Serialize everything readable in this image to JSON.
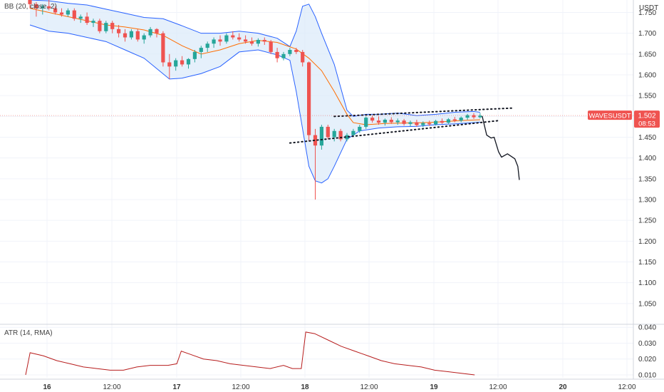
{
  "chart_data": {
    "type": "candlestick",
    "currency_label": "USDT",
    "price_axis": {
      "range": [
        1.0,
        1.78
      ],
      "ticks": [
        "1.750",
        "1.700",
        "1.650",
        "1.600",
        "1.550",
        "1.500",
        "1.450",
        "1.400",
        "1.350",
        "1.300",
        "1.250",
        "1.200",
        "1.150",
        "1.100",
        "1.050"
      ]
    },
    "atr_axis": {
      "range": [
        0.006,
        0.042
      ],
      "ticks": [
        "0.040",
        "0.030",
        "0.020",
        "0.010"
      ]
    },
    "x_axis": {
      "labels": [
        {
          "text": "16",
          "major": true
        },
        {
          "text": "12:00",
          "major": false
        },
        {
          "text": "17",
          "major": true
        },
        {
          "text": "12:00",
          "major": false
        },
        {
          "text": "18",
          "major": true
        },
        {
          "text": "12:00",
          "major": false
        },
        {
          "text": "19",
          "major": true
        },
        {
          "text": "12:00",
          "major": false
        },
        {
          "text": "20",
          "major": true
        },
        {
          "text": "12:00",
          "major": false
        }
      ]
    },
    "bollinger_label": "BB (20, close, 2)",
    "atr_label": "ATR (14, RMA)",
    "symbol_tag": "WAVESUSDT",
    "last_price": "1.502",
    "countdown": "08:53",
    "colors": {
      "up": "#26a69a",
      "down": "#ef5350",
      "bb_band": "#2962ff",
      "bb_fill": "#dcebfa",
      "bb_basis": "#ff6d00",
      "atr_line": "#b71c1c",
      "price_tag": "#ef5350"
    },
    "candles": [
      [
        1.78,
        1.79,
        1.76,
        1.77
      ],
      [
        1.77,
        1.775,
        1.74,
        1.76
      ],
      [
        1.76,
        1.77,
        1.745,
        1.765
      ],
      [
        1.765,
        1.78,
        1.755,
        1.76
      ],
      [
        1.76,
        1.765,
        1.745,
        1.75
      ],
      [
        1.75,
        1.76,
        1.74,
        1.745
      ],
      [
        1.745,
        1.76,
        1.74,
        1.755
      ],
      [
        1.755,
        1.76,
        1.73,
        1.735
      ],
      [
        1.735,
        1.745,
        1.725,
        1.74
      ],
      [
        1.74,
        1.75,
        1.72,
        1.725
      ],
      [
        1.725,
        1.735,
        1.715,
        1.73
      ],
      [
        1.73,
        1.735,
        1.7,
        1.705
      ],
      [
        1.705,
        1.73,
        1.7,
        1.725
      ],
      [
        1.725,
        1.73,
        1.7,
        1.71
      ],
      [
        1.71,
        1.72,
        1.69,
        1.7
      ],
      [
        1.7,
        1.71,
        1.68,
        1.69
      ],
      [
        1.69,
        1.71,
        1.685,
        1.705
      ],
      [
        1.705,
        1.71,
        1.68,
        1.685
      ],
      [
        1.685,
        1.7,
        1.675,
        1.695
      ],
      [
        1.695,
        1.715,
        1.69,
        1.71
      ],
      [
        1.71,
        1.712,
        1.69,
        1.7
      ],
      [
        1.7,
        1.705,
        1.62,
        1.63
      ],
      [
        1.63,
        1.65,
        1.59,
        1.62
      ],
      [
        1.62,
        1.64,
        1.61,
        1.635
      ],
      [
        1.635,
        1.645,
        1.62,
        1.625
      ],
      [
        1.625,
        1.64,
        1.615,
        1.638
      ],
      [
        1.638,
        1.66,
        1.63,
        1.655
      ],
      [
        1.655,
        1.67,
        1.64,
        1.665
      ],
      [
        1.665,
        1.68,
        1.655,
        1.675
      ],
      [
        1.675,
        1.69,
        1.665,
        1.685
      ],
      [
        1.685,
        1.695,
        1.67,
        1.68
      ],
      [
        1.68,
        1.7,
        1.675,
        1.695
      ],
      [
        1.695,
        1.705,
        1.685,
        1.69
      ],
      [
        1.69,
        1.7,
        1.68,
        1.685
      ],
      [
        1.685,
        1.695,
        1.675,
        1.68
      ],
      [
        1.68,
        1.69,
        1.67,
        1.675
      ],
      [
        1.675,
        1.688,
        1.668,
        1.684
      ],
      [
        1.684,
        1.69,
        1.672,
        1.68
      ],
      [
        1.68,
        1.684,
        1.65,
        1.655
      ],
      [
        1.655,
        1.665,
        1.63,
        1.64
      ],
      [
        1.64,
        1.655,
        1.635,
        1.65
      ],
      [
        1.65,
        1.665,
        1.645,
        1.66
      ],
      [
        1.66,
        1.665,
        1.65,
        1.655
      ],
      [
        1.655,
        1.66,
        1.62,
        1.63
      ],
      [
        1.63,
        1.632,
        1.44,
        1.455
      ],
      [
        1.455,
        1.47,
        1.3,
        1.43
      ],
      [
        1.43,
        1.48,
        1.42,
        1.475
      ],
      [
        1.475,
        1.48,
        1.445,
        1.45
      ],
      [
        1.45,
        1.47,
        1.44,
        1.465
      ],
      [
        1.465,
        1.47,
        1.44,
        1.445
      ],
      [
        1.445,
        1.46,
        1.44,
        1.455
      ],
      [
        1.455,
        1.47,
        1.45,
        1.465
      ],
      [
        1.465,
        1.48,
        1.46,
        1.475
      ],
      [
        1.475,
        1.5,
        1.47,
        1.497
      ],
      [
        1.497,
        1.502,
        1.485,
        1.49
      ],
      [
        1.49,
        1.5,
        1.48,
        1.485
      ],
      [
        1.485,
        1.495,
        1.478,
        1.492
      ],
      [
        1.492,
        1.498,
        1.482,
        1.486
      ],
      [
        1.486,
        1.495,
        1.48,
        1.49
      ],
      [
        1.49,
        1.494,
        1.478,
        1.482
      ],
      [
        1.482,
        1.49,
        1.476,
        1.486
      ],
      [
        1.486,
        1.492,
        1.475,
        1.479
      ],
      [
        1.479,
        1.488,
        1.474,
        1.484
      ],
      [
        1.484,
        1.49,
        1.477,
        1.481
      ],
      [
        1.481,
        1.492,
        1.478,
        1.489
      ],
      [
        1.489,
        1.495,
        1.482,
        1.485
      ],
      [
        1.485,
        1.496,
        1.482,
        1.493
      ],
      [
        1.493,
        1.499,
        1.486,
        1.49
      ],
      [
        1.49,
        1.5,
        1.486,
        1.497
      ],
      [
        1.497,
        1.506,
        1.492,
        1.503
      ],
      [
        1.503,
        1.508,
        1.494,
        1.498
      ],
      [
        1.498,
        1.508,
        1.495,
        1.502
      ]
    ],
    "bb_upper": [
      [
        0,
        1.78
      ],
      [
        3,
        1.778
      ],
      [
        6,
        1.772
      ],
      [
        9,
        1.768
      ],
      [
        12,
        1.758
      ],
      [
        15,
        1.748
      ],
      [
        18,
        1.738
      ],
      [
        21,
        1.735
      ],
      [
        24,
        1.718
      ],
      [
        27,
        1.7
      ],
      [
        30,
        1.7
      ],
      [
        33,
        1.705
      ],
      [
        36,
        1.7
      ],
      [
        39,
        1.688
      ],
      [
        41,
        1.668
      ],
      [
        42,
        1.705
      ],
      [
        43,
        1.765
      ],
      [
        44,
        1.77
      ],
      [
        45,
        1.74
      ],
      [
        46,
        1.7
      ],
      [
        48,
        1.625
      ],
      [
        50,
        1.515
      ],
      [
        51,
        1.5
      ],
      [
        53,
        1.505
      ],
      [
        55,
        1.505
      ],
      [
        58,
        1.508
      ],
      [
        61,
        1.502
      ],
      [
        64,
        1.505
      ],
      [
        67,
        1.51
      ],
      [
        70,
        1.512
      ],
      [
        71,
        1.51
      ]
    ],
    "bb_lower": [
      [
        0,
        1.72
      ],
      [
        3,
        1.705
      ],
      [
        6,
        1.7
      ],
      [
        9,
        1.69
      ],
      [
        12,
        1.68
      ],
      [
        15,
        1.66
      ],
      [
        18,
        1.64
      ],
      [
        20,
        1.615
      ],
      [
        22,
        1.59
      ],
      [
        24,
        1.592
      ],
      [
        27,
        1.603
      ],
      [
        30,
        1.62
      ],
      [
        33,
        1.655
      ],
      [
        36,
        1.66
      ],
      [
        39,
        1.648
      ],
      [
        41,
        1.635
      ],
      [
        42,
        1.56
      ],
      [
        43,
        1.47
      ],
      [
        44,
        1.38
      ],
      [
        45,
        1.345
      ],
      [
        46,
        1.34
      ],
      [
        47,
        1.35
      ],
      [
        48,
        1.38
      ],
      [
        50,
        1.445
      ],
      [
        52,
        1.465
      ],
      [
        55,
        1.472
      ],
      [
        58,
        1.475
      ],
      [
        61,
        1.476
      ],
      [
        64,
        1.48
      ],
      [
        67,
        1.482
      ],
      [
        70,
        1.485
      ],
      [
        71,
        1.486
      ]
    ],
    "bb_basis": [
      [
        0,
        1.76
      ],
      [
        3,
        1.75
      ],
      [
        6,
        1.74
      ],
      [
        9,
        1.73
      ],
      [
        12,
        1.72
      ],
      [
        15,
        1.715
      ],
      [
        18,
        1.708
      ],
      [
        21,
        1.695
      ],
      [
        24,
        1.67
      ],
      [
        27,
        1.65
      ],
      [
        30,
        1.66
      ],
      [
        33,
        1.675
      ],
      [
        36,
        1.683
      ],
      [
        39,
        1.678
      ],
      [
        42,
        1.662
      ],
      [
        44,
        1.64
      ],
      [
        46,
        1.61
      ],
      [
        48,
        1.56
      ],
      [
        50,
        1.505
      ],
      [
        51,
        1.485
      ],
      [
        53,
        1.48
      ],
      [
        56,
        1.483
      ],
      [
        59,
        1.484
      ],
      [
        62,
        1.485
      ],
      [
        65,
        1.487
      ],
      [
        68,
        1.49
      ],
      [
        71,
        1.492
      ]
    ],
    "projection_path": [
      [
        1.5,
        0
      ],
      [
        1.455,
        0.6
      ],
      [
        1.448,
        1.2
      ],
      [
        1.45,
        1.6
      ],
      [
        1.415,
        2.2
      ],
      [
        1.402,
        2.6
      ],
      [
        1.41,
        3.4
      ],
      [
        1.398,
        4.4
      ],
      [
        1.38,
        4.8
      ],
      [
        1.348,
        5.0
      ]
    ],
    "trend_upper": [
      [
        48,
        1.5
      ],
      [
        76,
        1.52
      ]
    ],
    "trend_lower": [
      [
        41,
        1.436
      ],
      [
        74,
        1.49
      ]
    ],
    "atr": [
      [
        0,
        0.01
      ],
      [
        1,
        0.024
      ],
      [
        4,
        0.022
      ],
      [
        7,
        0.019
      ],
      [
        10,
        0.017
      ],
      [
        13,
        0.015
      ],
      [
        16,
        0.014
      ],
      [
        19,
        0.013
      ],
      [
        22,
        0.013
      ],
      [
        25,
        0.015
      ],
      [
        28,
        0.016
      ],
      [
        30,
        0.016
      ],
      [
        32,
        0.016
      ],
      [
        34,
        0.017
      ],
      [
        35,
        0.025
      ],
      [
        37,
        0.023
      ],
      [
        40,
        0.02
      ],
      [
        43,
        0.019
      ],
      [
        46,
        0.017
      ],
      [
        49,
        0.016
      ],
      [
        52,
        0.015
      ],
      [
        55,
        0.014
      ],
      [
        58,
        0.016
      ],
      [
        60,
        0.014
      ],
      [
        62,
        0.014
      ],
      [
        63,
        0.037
      ],
      [
        65,
        0.036
      ],
      [
        68,
        0.032
      ],
      [
        71,
        0.028
      ],
      [
        74,
        0.025
      ],
      [
        77,
        0.022
      ],
      [
        80,
        0.019
      ],
      [
        83,
        0.017
      ],
      [
        86,
        0.016
      ],
      [
        89,
        0.015
      ],
      [
        92,
        0.013
      ],
      [
        95,
        0.012
      ],
      [
        98,
        0.011
      ],
      [
        101,
        0.01
      ]
    ]
  }
}
